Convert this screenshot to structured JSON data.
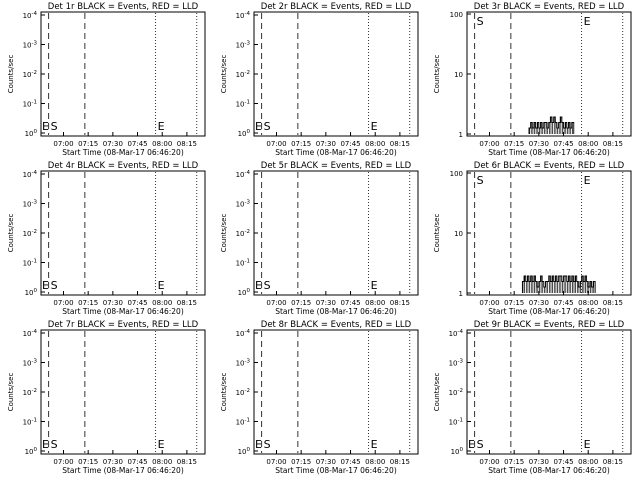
{
  "ylabel": "Counts/sec",
  "xlabel": "Start Time (08-Mar-17 06:46:20)",
  "x_ticks": [
    "07:00",
    "07:15",
    "07:30",
    "07:45",
    "08:00",
    "08:15"
  ],
  "marker_labels": {
    "start": "S",
    "end": "E"
  },
  "chart_data": [
    {
      "type": "line",
      "title": "Det 1r BLACK = Events, RED = LLD",
      "y_scale": "log",
      "yticks": [
        "10^-4",
        "10^-3",
        "10^-2",
        "10^-1",
        "10^0"
      ],
      "ylim": [
        0,
        5
      ],
      "start_marker": "S",
      "end_marker": "E",
      "events": [],
      "lld": []
    },
    {
      "type": "line",
      "title": "Det 2r BLACK = Events, RED = LLD",
      "y_scale": "log",
      "yticks": [
        "10^-4",
        "10^-3",
        "10^-2",
        "10^-1",
        "10^0"
      ],
      "ylim": [
        0,
        5
      ],
      "start_marker": "S",
      "end_marker": "E",
      "events": [],
      "lld": []
    },
    {
      "type": "line",
      "title": "Det 3r BLACK = Events, RED = LLD",
      "y_scale": "log",
      "yticks": [
        "100",
        "10",
        "1"
      ],
      "ylim": [
        1,
        100
      ],
      "start_marker": "S",
      "end_marker": "E",
      "events": [
        {
          "t": "07:24",
          "v": 1
        },
        {
          "t": "07:25",
          "v": 2
        },
        {
          "t": "07:26",
          "v": 1
        },
        {
          "t": "07:27",
          "v": 2
        },
        {
          "t": "07:28",
          "v": 1
        },
        {
          "t": "07:29",
          "v": 2
        },
        {
          "t": "07:30",
          "v": 1
        },
        {
          "t": "07:31",
          "v": 2
        },
        {
          "t": "07:32",
          "v": 1
        },
        {
          "t": "07:33",
          "v": 2
        },
        {
          "t": "07:34",
          "v": 2
        },
        {
          "t": "07:35",
          "v": 1
        },
        {
          "t": "07:36",
          "v": 2
        },
        {
          "t": "07:37",
          "v": 3
        },
        {
          "t": "07:38",
          "v": 2
        },
        {
          "t": "07:39",
          "v": 3
        },
        {
          "t": "07:40",
          "v": 2
        },
        {
          "t": "07:41",
          "v": 1
        },
        {
          "t": "07:42",
          "v": 2
        },
        {
          "t": "07:43",
          "v": 3
        },
        {
          "t": "07:44",
          "v": 2
        },
        {
          "t": "07:45",
          "v": 1
        },
        {
          "t": "07:46",
          "v": 2
        },
        {
          "t": "07:47",
          "v": 1
        },
        {
          "t": "07:48",
          "v": 2
        },
        {
          "t": "07:49",
          "v": 1
        },
        {
          "t": "07:50",
          "v": 2
        }
      ],
      "lld": []
    },
    {
      "type": "line",
      "title": "Det 4r BLACK = Events, RED = LLD",
      "y_scale": "log",
      "yticks": [
        "10^-4",
        "10^-3",
        "10^-2",
        "10^-1",
        "10^0"
      ],
      "ylim": [
        0,
        5
      ],
      "start_marker": "S",
      "end_marker": "E",
      "events": [],
      "lld": []
    },
    {
      "type": "line",
      "title": "Det 5r BLACK = Events, RED = LLD",
      "y_scale": "log",
      "yticks": [
        "10^-4",
        "10^-3",
        "10^-2",
        "10^-1",
        "10^0"
      ],
      "ylim": [
        0,
        5
      ],
      "start_marker": "S",
      "end_marker": "E",
      "events": [],
      "lld": []
    },
    {
      "type": "line",
      "title": "Det 6r BLACK = Events, RED = LLD",
      "y_scale": "log",
      "yticks": [
        "100",
        "10",
        "1"
      ],
      "ylim": [
        1,
        100
      ],
      "start_marker": "S",
      "end_marker": "E",
      "events": [
        {
          "t": "07:20",
          "v": 2
        },
        {
          "t": "07:21",
          "v": 3
        },
        {
          "t": "07:22",
          "v": 2
        },
        {
          "t": "07:23",
          "v": 3
        },
        {
          "t": "07:24",
          "v": 2
        },
        {
          "t": "07:25",
          "v": 3
        },
        {
          "t": "07:26",
          "v": 2
        },
        {
          "t": "07:27",
          "v": 3
        },
        {
          "t": "07:28",
          "v": 2
        },
        {
          "t": "07:29",
          "v": 1
        },
        {
          "t": "07:30",
          "v": 2
        },
        {
          "t": "07:31",
          "v": 3
        },
        {
          "t": "07:32",
          "v": 2
        },
        {
          "t": "07:33",
          "v": 1
        },
        {
          "t": "07:34",
          "v": 2
        },
        {
          "t": "07:35",
          "v": 2
        },
        {
          "t": "07:36",
          "v": 3
        },
        {
          "t": "07:37",
          "v": 2
        },
        {
          "t": "07:38",
          "v": 3
        },
        {
          "t": "07:39",
          "v": 2
        },
        {
          "t": "07:40",
          "v": 3
        },
        {
          "t": "07:41",
          "v": 2
        },
        {
          "t": "07:42",
          "v": 3
        },
        {
          "t": "07:43",
          "v": 3
        },
        {
          "t": "07:44",
          "v": 2
        },
        {
          "t": "07:45",
          "v": 3
        },
        {
          "t": "07:46",
          "v": 3
        },
        {
          "t": "07:47",
          "v": 2
        },
        {
          "t": "07:48",
          "v": 3
        },
        {
          "t": "07:49",
          "v": 2
        },
        {
          "t": "07:50",
          "v": 3
        },
        {
          "t": "07:51",
          "v": 2
        },
        {
          "t": "07:52",
          "v": 3
        },
        {
          "t": "07:53",
          "v": 2
        },
        {
          "t": "07:54",
          "v": 1
        },
        {
          "t": "07:55",
          "v": 2
        },
        {
          "t": "07:56",
          "v": 3
        },
        {
          "t": "07:57",
          "v": 2
        },
        {
          "t": "07:58",
          "v": 3
        },
        {
          "t": "07:59",
          "v": 2
        },
        {
          "t": "08:00",
          "v": 1
        },
        {
          "t": "08:01",
          "v": 2
        },
        {
          "t": "08:02",
          "v": 1
        },
        {
          "t": "08:03",
          "v": 2
        }
      ],
      "lld": []
    },
    {
      "type": "line",
      "title": "Det 7r BLACK = Events, RED = LLD",
      "y_scale": "log",
      "yticks": [
        "10^-4",
        "10^-3",
        "10^-2",
        "10^-1",
        "10^0"
      ],
      "ylim": [
        0,
        5
      ],
      "start_marker": "S",
      "end_marker": "E",
      "events": [],
      "lld": []
    },
    {
      "type": "line",
      "title": "Det 8r BLACK = Events, RED = LLD",
      "y_scale": "log",
      "yticks": [
        "10^-4",
        "10^-3",
        "10^-2",
        "10^-1",
        "10^0"
      ],
      "ylim": [
        0,
        5
      ],
      "start_marker": "S",
      "end_marker": "E",
      "events": [],
      "lld": []
    },
    {
      "type": "line",
      "title": "Det 9r BLACK = Events, RED = LLD",
      "y_scale": "log",
      "yticks": [
        "10^-4",
        "10^-3",
        "10^-2",
        "10^-1",
        "10^0"
      ],
      "ylim": [
        0,
        5
      ],
      "start_marker": "S",
      "end_marker": "E",
      "events": [],
      "lld": []
    }
  ]
}
